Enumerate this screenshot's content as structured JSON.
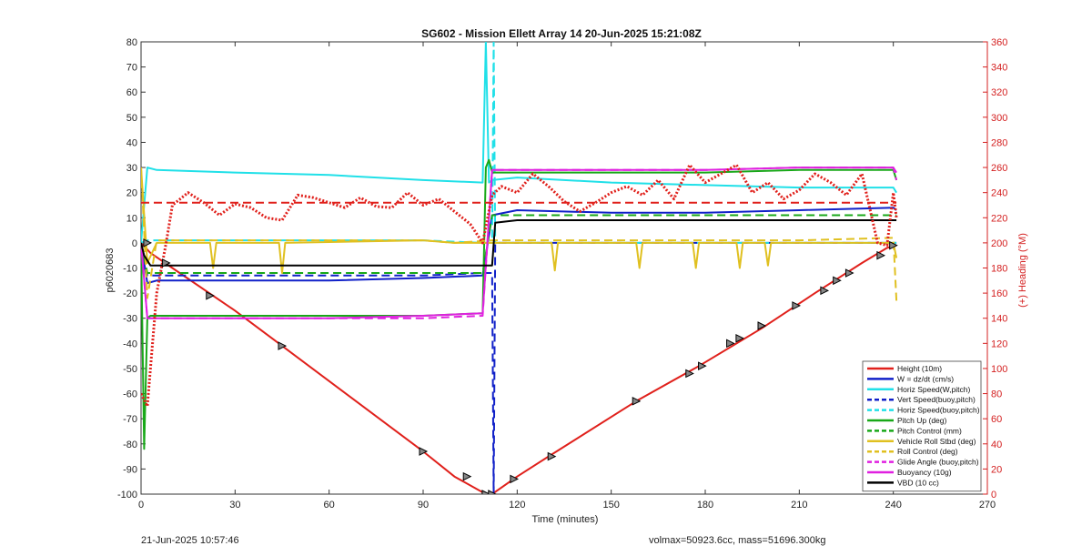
{
  "chart_data": {
    "type": "line",
    "title": "SG602 - Mission Ellett Array 14 20-Jun-2025 15:21:08Z",
    "xlabel": "Time (minutes)",
    "ylabel": "p6020683",
    "ylabel_right": "(+) Heading (°M)",
    "xlim": [
      0,
      270
    ],
    "ylim": [
      -100,
      80
    ],
    "ylim_right": [
      0,
      360
    ],
    "x_ticks": [
      0,
      30,
      60,
      90,
      120,
      150,
      180,
      210,
      240,
      270
    ],
    "y_ticks": [
      -100,
      -90,
      -80,
      -70,
      -60,
      -50,
      -40,
      -30,
      -20,
      -10,
      0,
      10,
      20,
      30,
      40,
      50,
      60,
      70,
      80
    ],
    "y_ticks_right": [
      0,
      20,
      40,
      60,
      80,
      100,
      120,
      140,
      160,
      180,
      200,
      220,
      240,
      260,
      280,
      300,
      320,
      340,
      360
    ],
    "legend_position": "bottom-right",
    "grid": false,
    "series": [
      {
        "name": "Height (10m)",
        "color": "#e0201b",
        "style": "solid",
        "axis": "left",
        "x": [
          0,
          3,
          10,
          30,
          45,
          90,
          100,
          110,
          112,
          120,
          130,
          158,
          178,
          198,
          215,
          230,
          238,
          241
        ],
        "y": [
          0,
          -4,
          -10,
          -27,
          -41,
          -83,
          -93,
          -100,
          -100,
          -93,
          -85,
          -63,
          -49,
          -34,
          -20,
          -8,
          -2,
          -1
        ]
      },
      {
        "name": "W = dz/dt (cm/s)",
        "color": "#1020c8",
        "style": "solid",
        "axis": "left",
        "x": [
          0,
          2,
          5,
          30,
          60,
          90,
          109,
          112,
          120,
          150,
          180,
          210,
          240,
          241
        ],
        "y": [
          0,
          -16,
          -15,
          -15,
          -15,
          -14,
          -13,
          11,
          13,
          12,
          12,
          13,
          14,
          13
        ]
      },
      {
        "name": "Horiz Speed(W,pitch)",
        "color": "#20e0e8",
        "style": "solid",
        "axis": "left",
        "x": [
          0,
          2,
          5,
          30,
          60,
          90,
          109,
          110,
          111,
          112,
          120,
          150,
          180,
          210,
          240,
          241
        ],
        "y": [
          0,
          30,
          29,
          28,
          27,
          25,
          24,
          80,
          24,
          25,
          26,
          24,
          23,
          22,
          22,
          20
        ]
      },
      {
        "name": "Vert Speed(buoy,pitch)",
        "color": "#1020c8",
        "style": "dashed",
        "axis": "left",
        "x": [
          0,
          2,
          30,
          90,
          109,
          112,
          112.5,
          113,
          120,
          240,
          241
        ],
        "y": [
          0,
          -13,
          -13,
          -13,
          -12,
          -12,
          -100,
          0,
          0,
          0,
          0
        ]
      },
      {
        "name": "Horiz Speed(buoy,pitch)",
        "color": "#20e0e8",
        "style": "dashed",
        "axis": "left",
        "x": [
          0,
          2,
          30,
          90,
          109,
          112,
          112.5,
          113,
          120,
          240,
          241
        ],
        "y": [
          0,
          1,
          1,
          1,
          0,
          0,
          80,
          0,
          0,
          0,
          0
        ]
      },
      {
        "name": "Pitch Up (deg)",
        "color": "#18a818",
        "style": "solid",
        "axis": "left",
        "x": [
          0,
          1,
          2,
          3,
          5,
          30,
          60,
          90,
          109,
          110,
          111,
          112,
          120,
          150,
          180,
          210,
          240,
          241
        ],
        "y": [
          0,
          -82,
          -30,
          -29,
          -29,
          -29,
          -29,
          -29,
          -28,
          30,
          33,
          28,
          28,
          28,
          28,
          29,
          29,
          25
        ]
      },
      {
        "name": "Pitch Control (mm)",
        "color": "#18a818",
        "style": "dashed",
        "axis": "left",
        "x": [
          0,
          2,
          5,
          30,
          60,
          90,
          109,
          112,
          120,
          150,
          180,
          210,
          240,
          241
        ],
        "y": [
          0,
          -12,
          -12,
          -12,
          -12,
          -12,
          -12,
          11,
          11,
          11,
          11,
          11,
          11,
          11
        ]
      },
      {
        "name": "Vehicle Roll Stbd (deg)",
        "color": "#e0c020",
        "style": "solid",
        "axis": "left",
        "x": [
          0,
          2,
          5,
          22,
          23,
          24,
          44,
          45,
          46,
          90,
          100,
          112,
          131,
          132,
          133,
          158,
          159,
          160,
          176,
          177,
          178,
          190,
          191,
          192,
          199,
          200,
          201,
          240,
          241
        ],
        "y": [
          30,
          -8,
          0,
          0,
          -10,
          0,
          0,
          -12,
          0,
          1,
          0,
          0,
          0,
          -11,
          0,
          0,
          -10,
          0,
          0,
          -10,
          0,
          0,
          -10,
          0,
          0,
          -9,
          0,
          0,
          -6
        ]
      },
      {
        "name": "Roll Control (deg)",
        "color": "#e0c020",
        "style": "dashed",
        "axis": "left",
        "x": [
          0,
          2,
          5,
          30,
          60,
          90,
          100,
          112,
          120,
          150,
          180,
          210,
          240,
          241
        ],
        "y": [
          30,
          -22,
          1,
          1,
          1,
          1,
          0,
          1,
          1,
          1,
          1,
          1,
          2,
          -23
        ]
      },
      {
        "name": "Glide Angle (buoy,pitch)",
        "color": "#e020e0",
        "style": "dashed",
        "axis": "left",
        "x": [
          0,
          2,
          5,
          30,
          60,
          90,
          109,
          112,
          120,
          150,
          180,
          210,
          240,
          241
        ],
        "y": [
          0,
          -30,
          -30,
          -30,
          -30,
          -30,
          -29,
          29,
          29,
          29,
          29,
          30,
          30,
          25
        ]
      },
      {
        "name": "Buoyancy (10g)",
        "color": "#e020e0",
        "style": "solid",
        "axis": "left",
        "x": [
          0,
          2,
          5,
          30,
          60,
          90,
          109,
          112,
          120,
          150,
          180,
          210,
          240,
          241
        ],
        "y": [
          0,
          -30,
          -30,
          -30,
          -30,
          -29,
          -28,
          29,
          29,
          29,
          29,
          30,
          30,
          28
        ]
      },
      {
        "name": "VBD (10 cc)",
        "color": "#000000",
        "style": "solid",
        "axis": "left",
        "x": [
          0,
          1,
          3,
          30,
          60,
          90,
          109,
          112,
          113,
          120,
          150,
          180,
          210,
          240,
          241
        ],
        "y": [
          0,
          -5,
          -9,
          -9,
          -9,
          -9,
          -9,
          -9,
          8,
          9,
          9,
          9,
          9,
          9,
          9
        ]
      },
      {
        "name": "",
        "color": "#e0201b",
        "style": "dotted",
        "axis": "right",
        "x": [
          0,
          2,
          5,
          8,
          10,
          15,
          20,
          25,
          30,
          35,
          40,
          45,
          50,
          55,
          60,
          65,
          70,
          75,
          80,
          85,
          90,
          95,
          100,
          105,
          109,
          112,
          115,
          120,
          125,
          130,
          135,
          140,
          145,
          150,
          155,
          160,
          165,
          170,
          175,
          180,
          185,
          190,
          195,
          200,
          205,
          210,
          215,
          220,
          225,
          230,
          235,
          238,
          240,
          241
        ],
        "y": [
          80,
          70,
          160,
          200,
          230,
          240,
          232,
          222,
          231,
          228,
          220,
          218,
          238,
          236,
          232,
          228,
          236,
          229,
          228,
          240,
          230,
          235,
          225,
          215,
          200,
          238,
          245,
          240,
          255,
          245,
          233,
          225,
          232,
          240,
          245,
          238,
          250,
          235,
          262,
          248,
          255,
          262,
          240,
          248,
          235,
          242,
          255,
          248,
          238,
          255,
          200,
          198,
          240,
          220
        ]
      },
      {
        "name": "",
        "color": "#e0201b",
        "style": "dashed",
        "axis": "right",
        "x": [
          0,
          2,
          241
        ],
        "y": [
          232,
          232,
          232
        ]
      }
    ],
    "markers": {
      "name": "Height (10m)",
      "x": [
        2,
        8,
        22,
        45,
        90,
        104,
        110,
        112,
        119,
        131,
        158,
        175,
        179,
        188,
        191,
        198,
        209,
        218,
        222,
        226,
        236,
        240
      ],
      "y": [
        0,
        -8,
        -21,
        -41,
        -83,
        -93,
        -100,
        -100,
        -94,
        -85,
        -63,
        -52,
        -49,
        -40,
        -38,
        -33,
        -25,
        -19,
        -15,
        -12,
        -5,
        -1
      ]
    }
  },
  "footer": {
    "timestamp": "21-Jun-2025 10:57:46",
    "summary": "volmax=50923.6cc, mass=51696.300kg"
  }
}
